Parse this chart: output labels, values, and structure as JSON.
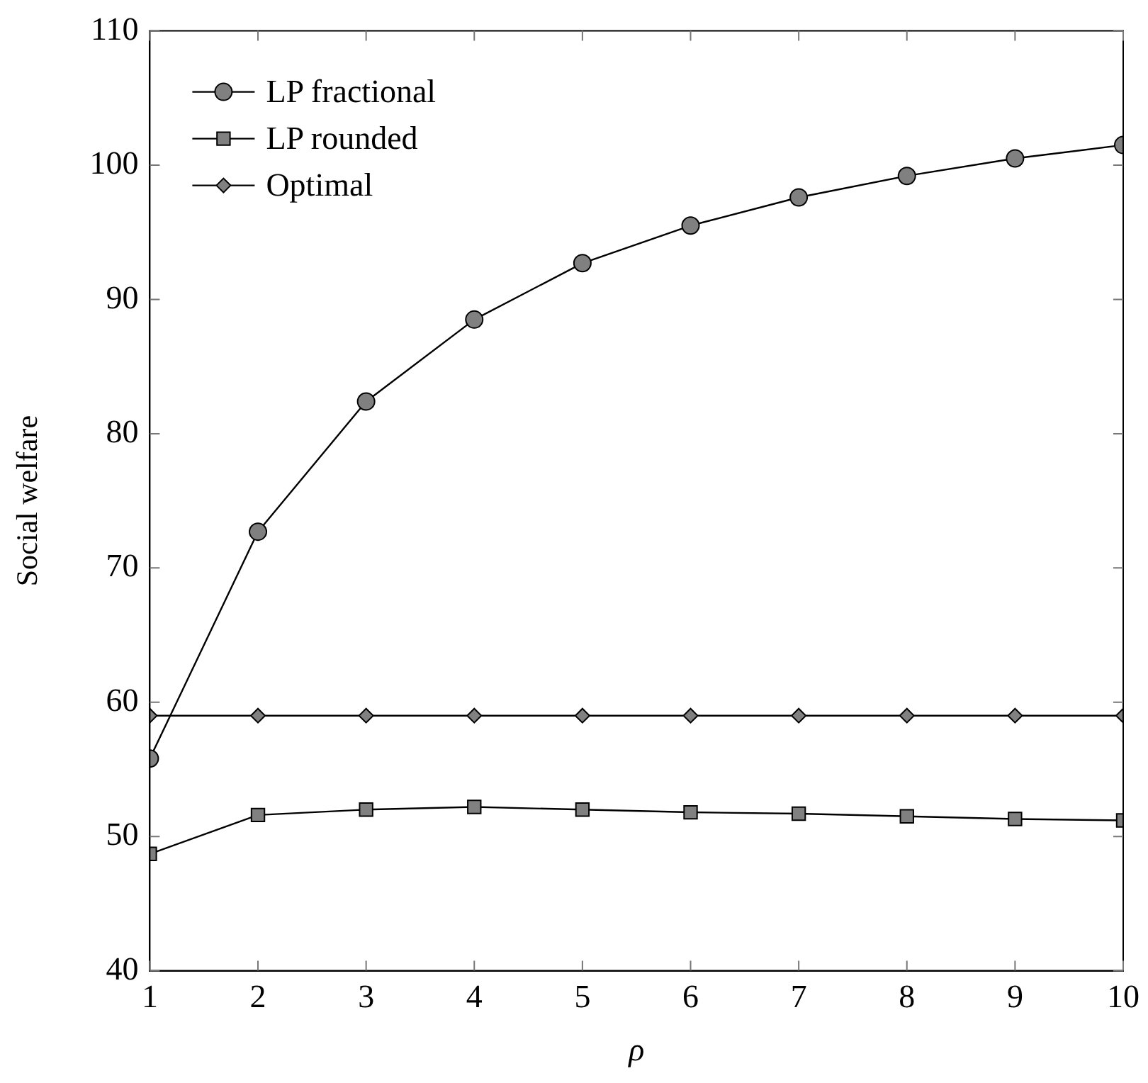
{
  "chart_data": {
    "type": "line",
    "xlabel": "ρ",
    "ylabel": "Social welfare",
    "x": [
      1,
      2,
      3,
      4,
      5,
      6,
      7,
      8,
      9,
      10
    ],
    "series": [
      {
        "name": "LP fractional",
        "color": "#808080",
        "marker": "circle",
        "values": [
          55.8,
          72.7,
          82.4,
          88.5,
          92.7,
          95.5,
          97.6,
          99.2,
          100.5,
          101.5
        ]
      },
      {
        "name": "LP rounded",
        "color": "#808080",
        "marker": "square",
        "values": [
          48.7,
          51.6,
          52.0,
          52.2,
          52.0,
          51.8,
          51.7,
          51.5,
          51.3,
          51.2
        ]
      },
      {
        "name": "Optimal",
        "color": "#808080",
        "marker": "diamond",
        "values": [
          59,
          59,
          59,
          59,
          59,
          59,
          59,
          59,
          59,
          59
        ]
      }
    ],
    "xlim": [
      1,
      10
    ],
    "xticks": [
      1,
      2,
      3,
      4,
      5,
      6,
      7,
      8,
      9,
      10
    ],
    "ylim": [
      40,
      110
    ],
    "yticks": [
      40,
      50,
      60,
      70,
      80,
      90,
      100,
      110
    ],
    "legend": "top left",
    "line_style": "solid"
  }
}
